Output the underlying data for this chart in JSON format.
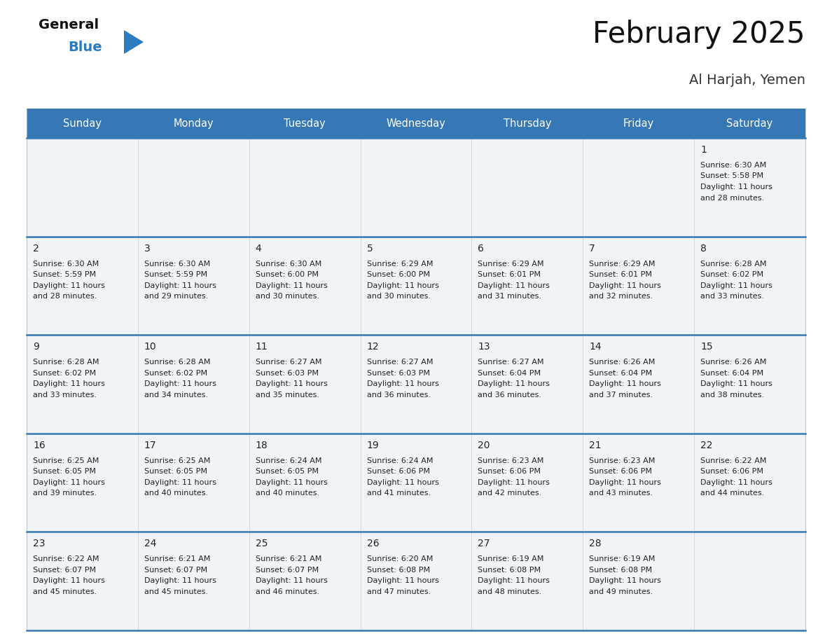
{
  "title": "February 2025",
  "subtitle": "Al Harjah, Yemen",
  "days_of_week": [
    "Sunday",
    "Monday",
    "Tuesday",
    "Wednesday",
    "Thursday",
    "Friday",
    "Saturday"
  ],
  "header_bg": "#3578b5",
  "header_text": "#ffffff",
  "cell_bg": "#f0f3f7",
  "separator_color": "#3578b5",
  "text_color": "#222222",
  "logo_blue": "#2b7bbf",
  "calendar_data": [
    [
      null,
      null,
      null,
      null,
      null,
      null,
      {
        "day": 1,
        "sunrise": "6:30 AM",
        "sunset": "5:58 PM",
        "daylight_h": "11 hours",
        "daylight_m": "and 28 minutes."
      }
    ],
    [
      {
        "day": 2,
        "sunrise": "6:30 AM",
        "sunset": "5:59 PM",
        "daylight_h": "11 hours",
        "daylight_m": "and 28 minutes."
      },
      {
        "day": 3,
        "sunrise": "6:30 AM",
        "sunset": "5:59 PM",
        "daylight_h": "11 hours",
        "daylight_m": "and 29 minutes."
      },
      {
        "day": 4,
        "sunrise": "6:30 AM",
        "sunset": "6:00 PM",
        "daylight_h": "11 hours",
        "daylight_m": "and 30 minutes."
      },
      {
        "day": 5,
        "sunrise": "6:29 AM",
        "sunset": "6:00 PM",
        "daylight_h": "11 hours",
        "daylight_m": "and 30 minutes."
      },
      {
        "day": 6,
        "sunrise": "6:29 AM",
        "sunset": "6:01 PM",
        "daylight_h": "11 hours",
        "daylight_m": "and 31 minutes."
      },
      {
        "day": 7,
        "sunrise": "6:29 AM",
        "sunset": "6:01 PM",
        "daylight_h": "11 hours",
        "daylight_m": "and 32 minutes."
      },
      {
        "day": 8,
        "sunrise": "6:28 AM",
        "sunset": "6:02 PM",
        "daylight_h": "11 hours",
        "daylight_m": "and 33 minutes."
      }
    ],
    [
      {
        "day": 9,
        "sunrise": "6:28 AM",
        "sunset": "6:02 PM",
        "daylight_h": "11 hours",
        "daylight_m": "and 33 minutes."
      },
      {
        "day": 10,
        "sunrise": "6:28 AM",
        "sunset": "6:02 PM",
        "daylight_h": "11 hours",
        "daylight_m": "and 34 minutes."
      },
      {
        "day": 11,
        "sunrise": "6:27 AM",
        "sunset": "6:03 PM",
        "daylight_h": "11 hours",
        "daylight_m": "and 35 minutes."
      },
      {
        "day": 12,
        "sunrise": "6:27 AM",
        "sunset": "6:03 PM",
        "daylight_h": "11 hours",
        "daylight_m": "and 36 minutes."
      },
      {
        "day": 13,
        "sunrise": "6:27 AM",
        "sunset": "6:04 PM",
        "daylight_h": "11 hours",
        "daylight_m": "and 36 minutes."
      },
      {
        "day": 14,
        "sunrise": "6:26 AM",
        "sunset": "6:04 PM",
        "daylight_h": "11 hours",
        "daylight_m": "and 37 minutes."
      },
      {
        "day": 15,
        "sunrise": "6:26 AM",
        "sunset": "6:04 PM",
        "daylight_h": "11 hours",
        "daylight_m": "and 38 minutes."
      }
    ],
    [
      {
        "day": 16,
        "sunrise": "6:25 AM",
        "sunset": "6:05 PM",
        "daylight_h": "11 hours",
        "daylight_m": "and 39 minutes."
      },
      {
        "day": 17,
        "sunrise": "6:25 AM",
        "sunset": "6:05 PM",
        "daylight_h": "11 hours",
        "daylight_m": "and 40 minutes."
      },
      {
        "day": 18,
        "sunrise": "6:24 AM",
        "sunset": "6:05 PM",
        "daylight_h": "11 hours",
        "daylight_m": "and 40 minutes."
      },
      {
        "day": 19,
        "sunrise": "6:24 AM",
        "sunset": "6:06 PM",
        "daylight_h": "11 hours",
        "daylight_m": "and 41 minutes."
      },
      {
        "day": 20,
        "sunrise": "6:23 AM",
        "sunset": "6:06 PM",
        "daylight_h": "11 hours",
        "daylight_m": "and 42 minutes."
      },
      {
        "day": 21,
        "sunrise": "6:23 AM",
        "sunset": "6:06 PM",
        "daylight_h": "11 hours",
        "daylight_m": "and 43 minutes."
      },
      {
        "day": 22,
        "sunrise": "6:22 AM",
        "sunset": "6:06 PM",
        "daylight_h": "11 hours",
        "daylight_m": "and 44 minutes."
      }
    ],
    [
      {
        "day": 23,
        "sunrise": "6:22 AM",
        "sunset": "6:07 PM",
        "daylight_h": "11 hours",
        "daylight_m": "and 45 minutes."
      },
      {
        "day": 24,
        "sunrise": "6:21 AM",
        "sunset": "6:07 PM",
        "daylight_h": "11 hours",
        "daylight_m": "and 45 minutes."
      },
      {
        "day": 25,
        "sunrise": "6:21 AM",
        "sunset": "6:07 PM",
        "daylight_h": "11 hours",
        "daylight_m": "and 46 minutes."
      },
      {
        "day": 26,
        "sunrise": "6:20 AM",
        "sunset": "6:08 PM",
        "daylight_h": "11 hours",
        "daylight_m": "and 47 minutes."
      },
      {
        "day": 27,
        "sunrise": "6:19 AM",
        "sunset": "6:08 PM",
        "daylight_h": "11 hours",
        "daylight_m": "and 48 minutes."
      },
      {
        "day": 28,
        "sunrise": "6:19 AM",
        "sunset": "6:08 PM",
        "daylight_h": "11 hours",
        "daylight_m": "and 49 minutes."
      },
      null
    ]
  ]
}
